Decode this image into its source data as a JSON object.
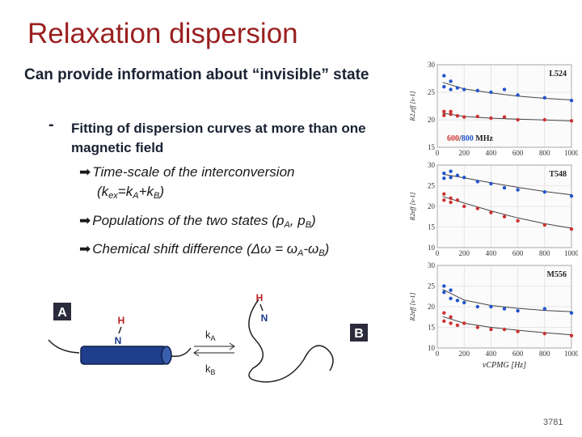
{
  "slide": {
    "title": "Relaxation dispersion",
    "bullet1": "Can provide information about “invisible” state",
    "dash": "-",
    "bullet2": "Fitting of dispersion curves at more than one magnetic field",
    "sub_items": [
      {
        "arrow": "➡",
        "pre": "Time-scale of the interconversion",
        "line2a": "(k",
        "s1": "ex",
        "mid1": "=k",
        "s2": "A",
        "mid2": "+k",
        "s3": "B",
        "end": ")"
      },
      {
        "arrow": "➡",
        "pre": "Populations of the two states (p",
        "s1": "A",
        "mid1": ", p",
        "s2": "B",
        "end": ")"
      },
      {
        "arrow": "➡",
        "pre": "Chemical shift difference (Δω = ω",
        "s1": "A",
        "mid1": "-ω",
        "s2": "B",
        "end": ")"
      }
    ],
    "page_number": "3781"
  },
  "figure": {
    "label_a": "A",
    "label_b": "B",
    "h": "H",
    "n": "N",
    "k_main": "k",
    "k_a_sub": "A",
    "k_b_sub": "B"
  },
  "chart_data": [
    {
      "type": "scatter",
      "title": "L524",
      "field_labels": [
        "600",
        "/",
        "800",
        "MHz"
      ],
      "ylabel": "R2,eff [s-1]",
      "ylim": [
        15,
        30
      ],
      "yticks": [
        15,
        20,
        25,
        30
      ],
      "xlim": [
        0,
        1000
      ],
      "xticks": [
        0,
        200,
        400,
        600,
        800,
        1000
      ],
      "series": [
        {
          "color": "#2255cc",
          "x": [
            50,
            50,
            100,
            100,
            150,
            200,
            300,
            400,
            500,
            600,
            800,
            1000
          ],
          "y": [
            28,
            26,
            27,
            25.5,
            25.8,
            25.5,
            25.3,
            25,
            25.5,
            24.5,
            24,
            23.5
          ],
          "fit": [
            [
              40,
              26.8
            ],
            [
              200,
              25.6
            ],
            [
              400,
              24.9
            ],
            [
              600,
              24.3
            ],
            [
              800,
              23.9
            ],
            [
              1000,
              23.6
            ]
          ]
        },
        {
          "color": "#cc3333",
          "x": [
            50,
            50,
            100,
            100,
            150,
            200,
            300,
            400,
            500,
            600,
            800,
            1000
          ],
          "y": [
            21.5,
            20.8,
            21,
            21.5,
            20.7,
            20.5,
            20.6,
            20.3,
            20.5,
            20,
            20,
            19.8
          ],
          "fit": [
            [
              40,
              21.2
            ],
            [
              200,
              20.6
            ],
            [
              400,
              20.3
            ],
            [
              600,
              20.1
            ],
            [
              800,
              19.95
            ],
            [
              1000,
              19.8
            ]
          ]
        }
      ]
    },
    {
      "type": "scatter",
      "title": "T548",
      "ylabel": "R2eff [s-1]",
      "ylim": [
        10,
        30
      ],
      "yticks": [
        10,
        15,
        20,
        25,
        30
      ],
      "xlim": [
        0,
        1000
      ],
      "xticks": [
        0,
        200,
        400,
        600,
        800,
        1000
      ],
      "series": [
        {
          "color": "#2255cc",
          "x": [
            50,
            50,
            100,
            100,
            150,
            200,
            300,
            400,
            500,
            600,
            800,
            1000
          ],
          "y": [
            28,
            26.8,
            28.5,
            27,
            27.5,
            27,
            26,
            25.5,
            24.5,
            24,
            23.5,
            22.5
          ],
          "fit": [
            [
              40,
              27.8
            ],
            [
              200,
              26.9
            ],
            [
              400,
              25.7
            ],
            [
              600,
              24.6
            ],
            [
              800,
              23.6
            ],
            [
              1000,
              22.8
            ]
          ]
        },
        {
          "color": "#cc3333",
          "x": [
            50,
            50,
            100,
            100,
            150,
            200,
            300,
            400,
            500,
            600,
            800,
            1000
          ],
          "y": [
            23,
            21.5,
            22,
            21,
            21.5,
            20,
            19.5,
            18.5,
            17.5,
            16.5,
            15.5,
            14.5
          ],
          "fit": [
            [
              40,
              22.4
            ],
            [
              200,
              20.8
            ],
            [
              400,
              18.9
            ],
            [
              600,
              17.2
            ],
            [
              800,
              15.8
            ],
            [
              1000,
              14.7
            ]
          ]
        }
      ]
    },
    {
      "type": "scatter",
      "title": "M556",
      "ylabel": "R2eff [s-1]",
      "xlabel": "vCPMG [Hz]",
      "ylim": [
        10,
        30
      ],
      "yticks": [
        10,
        15,
        20,
        25,
        30
      ],
      "xlim": [
        0,
        1000
      ],
      "xticks": [
        0,
        200,
        400,
        600,
        800,
        1000
      ],
      "series": [
        {
          "color": "#2255cc",
          "x": [
            50,
            50,
            100,
            100,
            150,
            200,
            300,
            400,
            500,
            600,
            800,
            1000
          ],
          "y": [
            25,
            23.5,
            24,
            22,
            21.5,
            21,
            20,
            20,
            19.5,
            19,
            19.5,
            18.5
          ],
          "fit": [
            [
              40,
              24.2
            ],
            [
              200,
              21.6
            ],
            [
              400,
              20.3
            ],
            [
              600,
              19.6
            ],
            [
              800,
              19.1
            ],
            [
              1000,
              18.8
            ]
          ]
        },
        {
          "color": "#cc3333",
          "x": [
            50,
            50,
            100,
            100,
            150,
            200,
            300,
            400,
            500,
            600,
            800,
            1000
          ],
          "y": [
            18.5,
            16.5,
            17.5,
            16,
            15.5,
            16,
            15,
            14.5,
            14.5,
            14,
            13.5,
            13
          ],
          "fit": [
            [
              40,
              17.6
            ],
            [
              200,
              16
            ],
            [
              400,
              15
            ],
            [
              600,
              14.3
            ],
            [
              800,
              13.7
            ],
            [
              1000,
              13.2
            ]
          ]
        }
      ]
    }
  ]
}
